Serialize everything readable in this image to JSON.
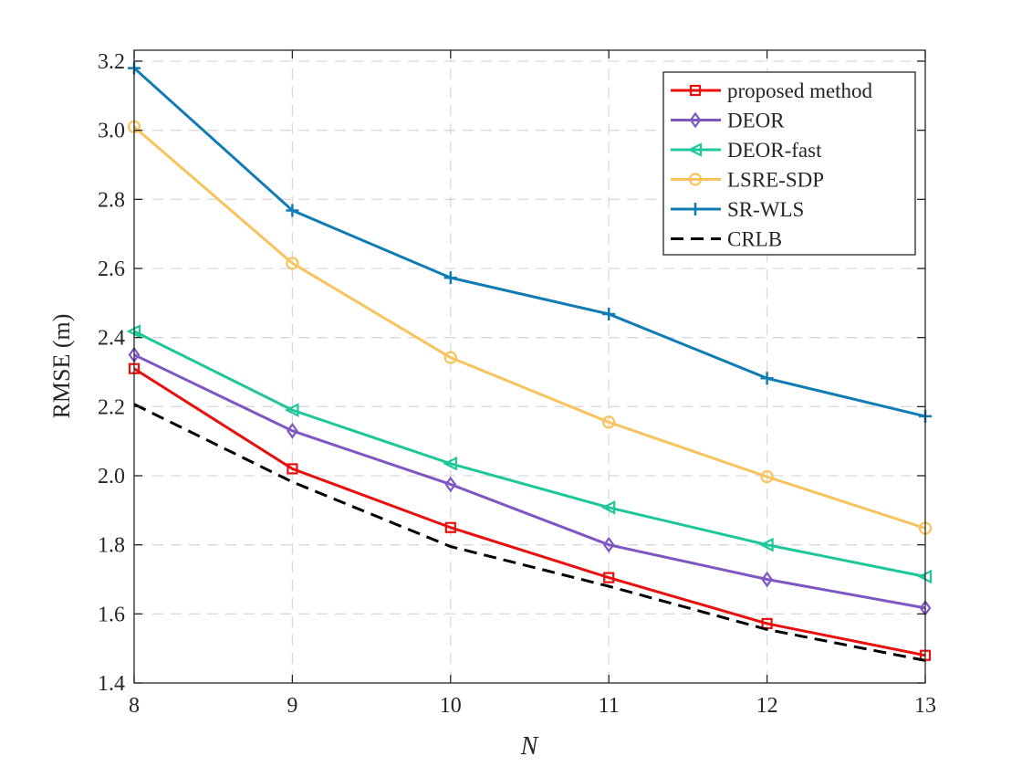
{
  "chart_data": {
    "type": "line",
    "title": "",
    "xlabel": "N",
    "ylabel": "RMSE (m)",
    "xlim": [
      8,
      13
    ],
    "ylim": [
      1.4,
      3.2
    ],
    "xticks": [
      "8",
      "9",
      "10",
      "11",
      "12",
      "13"
    ],
    "yticks": [
      "1.4",
      "1.6",
      "1.8",
      "2.0",
      "2.2",
      "2.4",
      "2.6",
      "2.8",
      "3.0",
      "3.2"
    ],
    "grid": true,
    "legend_position": "top-right",
    "x": [
      8,
      9,
      10,
      11,
      12,
      13
    ],
    "series": [
      {
        "name": "proposed method",
        "color": "#e8100f",
        "marker": "square",
        "dash": false,
        "values": [
          2.31,
          2.02,
          1.85,
          1.705,
          1.572,
          1.48
        ]
      },
      {
        "name": "DEOR",
        "color": "#7e57c2",
        "marker": "diamond",
        "dash": false,
        "values": [
          2.35,
          2.13,
          1.975,
          1.8,
          1.7,
          1.617
        ]
      },
      {
        "name": "DEOR-fast",
        "color": "#1ec79a",
        "marker": "triangle-left",
        "dash": false,
        "values": [
          2.418,
          2.19,
          2.035,
          1.908,
          1.8,
          1.708
        ]
      },
      {
        "name": "LSRE-SDP",
        "color": "#f7c35c",
        "marker": "circle",
        "dash": false,
        "values": [
          3.01,
          2.615,
          2.342,
          2.155,
          1.997,
          1.848
        ]
      },
      {
        "name": "SR-WLS",
        "color": "#0f7db4",
        "marker": "plus",
        "dash": false,
        "values": [
          3.18,
          2.768,
          2.573,
          2.468,
          2.282,
          2.172
        ]
      },
      {
        "name": "CRLB",
        "color": "#000000",
        "marker": "none",
        "dash": true,
        "values": [
          2.207,
          1.982,
          1.795,
          1.68,
          1.555,
          1.465
        ]
      }
    ]
  }
}
